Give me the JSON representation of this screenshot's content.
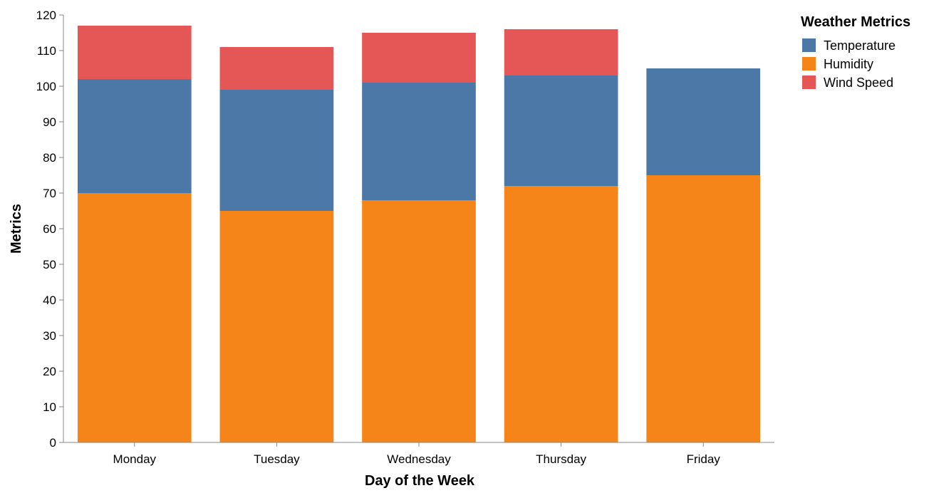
{
  "chart_data": {
    "type": "bar",
    "stacked": true,
    "xlabel": "Day of the Week",
    "ylabel": "Metrics",
    "ylim": [
      0,
      120
    ],
    "yticks": [
      0,
      10,
      20,
      30,
      40,
      50,
      60,
      70,
      80,
      90,
      100,
      110,
      120
    ],
    "grid": false,
    "legend": {
      "title": "Weather Metrics",
      "placement": "top-right"
    },
    "categories": [
      "Monday",
      "Tuesday",
      "Wednesday",
      "Thursday",
      "Friday"
    ],
    "series": [
      {
        "name": "Humidity",
        "color": "#f58518",
        "values": [
          70,
          65,
          68,
          72,
          75
        ]
      },
      {
        "name": "Temperature",
        "color": "#4c78a8",
        "values": [
          32,
          34,
          33,
          31,
          30
        ]
      },
      {
        "name": "Wind Speed",
        "color": "#e45756",
        "values": [
          15,
          12,
          14,
          13,
          0
        ]
      }
    ],
    "legend_order": [
      "Temperature",
      "Humidity",
      "Wind Speed"
    ]
  }
}
